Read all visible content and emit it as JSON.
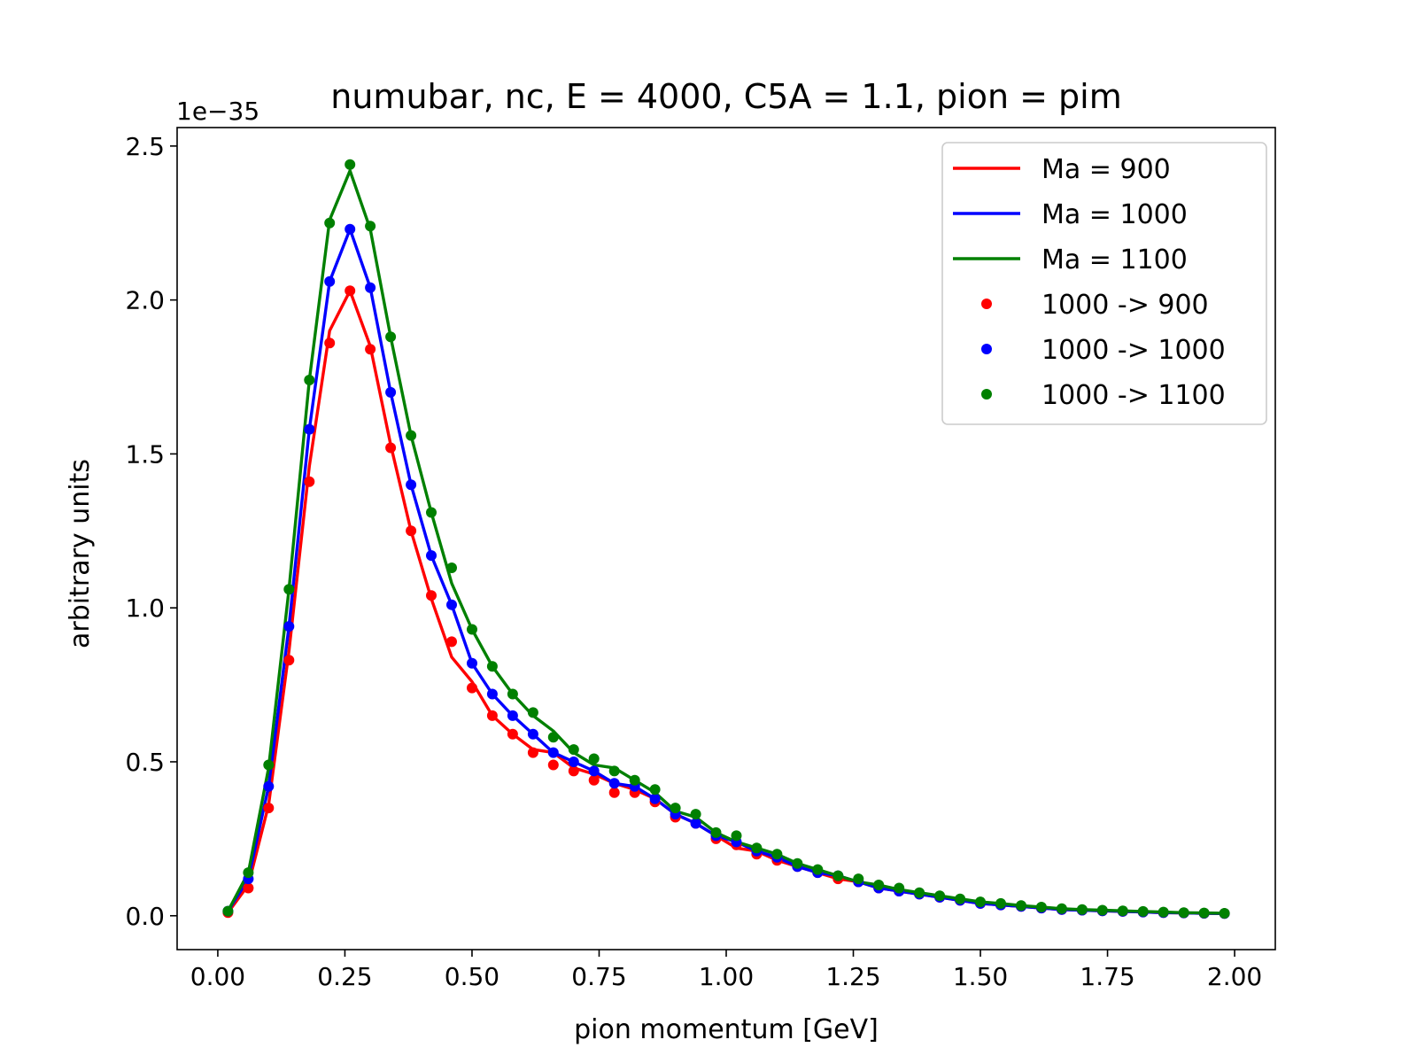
{
  "chart_data": {
    "type": "line",
    "title": "numubar, nc, E = 4000, C5A = 1.1, pion = pim",
    "xlabel": "pion momentum [GeV]",
    "ylabel": "arbitrary units",
    "y_offset_label": "1e−35",
    "xlim": [
      -0.08,
      2.08
    ],
    "ylim": [
      -0.11,
      2.56
    ],
    "xticks": [
      0.0,
      0.25,
      0.5,
      0.75,
      1.0,
      1.25,
      1.5,
      1.75,
      2.0
    ],
    "xtick_labels": [
      "0.00",
      "0.25",
      "0.50",
      "0.75",
      "1.00",
      "1.25",
      "1.50",
      "1.75",
      "2.00"
    ],
    "yticks": [
      0.0,
      0.5,
      1.0,
      1.5,
      2.0,
      2.5
    ],
    "ytick_labels": [
      "0.0",
      "0.5",
      "1.0",
      "1.5",
      "2.0",
      "2.5"
    ],
    "legend_position": "top-right",
    "x": [
      0.02,
      0.06,
      0.1,
      0.14,
      0.18,
      0.22,
      0.26,
      0.3,
      0.34,
      0.38,
      0.42,
      0.46,
      0.5,
      0.54,
      0.58,
      0.62,
      0.66,
      0.7,
      0.74,
      0.78,
      0.82,
      0.86,
      0.9,
      0.94,
      0.98,
      1.02,
      1.06,
      1.1,
      1.14,
      1.18,
      1.22,
      1.26,
      1.3,
      1.34,
      1.38,
      1.42,
      1.46,
      1.5,
      1.54,
      1.58,
      1.62,
      1.66,
      1.7,
      1.74,
      1.78,
      1.82,
      1.86,
      1.9,
      1.94,
      1.98
    ],
    "series": [
      {
        "name": "Ma = 900",
        "style": "line",
        "color": "#ff0000",
        "values": [
          0.01,
          0.1,
          0.36,
          0.86,
          1.46,
          1.9,
          2.03,
          1.85,
          1.53,
          1.25,
          1.03,
          0.84,
          0.76,
          0.65,
          0.59,
          0.54,
          0.53,
          0.48,
          0.46,
          0.43,
          0.41,
          0.38,
          0.33,
          0.3,
          0.26,
          0.22,
          0.21,
          0.18,
          0.16,
          0.14,
          0.12,
          0.11,
          0.09,
          0.08,
          0.07,
          0.06,
          0.05,
          0.04,
          0.035,
          0.03,
          0.025,
          0.02,
          0.018,
          0.016,
          0.014,
          0.012,
          0.01,
          0.009,
          0.008,
          0.007
        ]
      },
      {
        "name": "Ma = 1000",
        "style": "line",
        "color": "#0000ff",
        "values": [
          0.015,
          0.12,
          0.42,
          0.94,
          1.58,
          2.06,
          2.23,
          2.04,
          1.7,
          1.4,
          1.17,
          1.01,
          0.82,
          0.72,
          0.65,
          0.59,
          0.53,
          0.5,
          0.47,
          0.43,
          0.42,
          0.38,
          0.33,
          0.3,
          0.26,
          0.24,
          0.21,
          0.19,
          0.16,
          0.14,
          0.13,
          0.11,
          0.09,
          0.08,
          0.07,
          0.06,
          0.05,
          0.04,
          0.035,
          0.03,
          0.025,
          0.02,
          0.018,
          0.016,
          0.014,
          0.012,
          0.01,
          0.009,
          0.008,
          0.007
        ]
      },
      {
        "name": "Ma = 1100",
        "style": "line",
        "color": "#008000",
        "values": [
          0.015,
          0.14,
          0.48,
          1.06,
          1.74,
          2.26,
          2.42,
          2.23,
          1.88,
          1.56,
          1.31,
          1.08,
          0.93,
          0.81,
          0.72,
          0.65,
          0.6,
          0.53,
          0.49,
          0.48,
          0.44,
          0.4,
          0.34,
          0.32,
          0.27,
          0.24,
          0.22,
          0.2,
          0.17,
          0.15,
          0.13,
          0.11,
          0.1,
          0.085,
          0.075,
          0.065,
          0.055,
          0.045,
          0.04,
          0.033,
          0.028,
          0.023,
          0.02,
          0.018,
          0.016,
          0.014,
          0.012,
          0.01,
          0.009,
          0.008
        ]
      },
      {
        "name": "1000 -> 900",
        "style": "markers",
        "color": "#ff0000",
        "values": [
          0.01,
          0.09,
          0.35,
          0.83,
          1.41,
          1.86,
          2.03,
          1.84,
          1.52,
          1.25,
          1.04,
          0.89,
          0.74,
          0.65,
          0.59,
          0.53,
          0.49,
          0.47,
          0.44,
          0.4,
          0.4,
          0.37,
          0.32,
          0.3,
          0.25,
          0.23,
          0.2,
          0.18,
          0.16,
          0.14,
          0.12,
          0.11,
          0.09,
          0.08,
          0.07,
          0.06,
          0.05,
          0.04,
          0.035,
          0.03,
          0.025,
          0.02,
          0.018,
          0.016,
          0.014,
          0.012,
          0.01,
          0.009,
          0.008,
          0.007
        ]
      },
      {
        "name": "1000 -> 1000",
        "style": "markers",
        "color": "#0000ff",
        "values": [
          0.015,
          0.12,
          0.42,
          0.94,
          1.58,
          2.06,
          2.23,
          2.04,
          1.7,
          1.4,
          1.17,
          1.01,
          0.82,
          0.72,
          0.65,
          0.59,
          0.53,
          0.5,
          0.47,
          0.43,
          0.42,
          0.38,
          0.33,
          0.3,
          0.26,
          0.24,
          0.21,
          0.19,
          0.16,
          0.14,
          0.13,
          0.11,
          0.09,
          0.08,
          0.07,
          0.06,
          0.05,
          0.04,
          0.035,
          0.03,
          0.025,
          0.02,
          0.018,
          0.016,
          0.014,
          0.012,
          0.01,
          0.009,
          0.008,
          0.007
        ]
      },
      {
        "name": "1000 -> 1100",
        "style": "markers",
        "color": "#008000",
        "values": [
          0.015,
          0.14,
          0.49,
          1.06,
          1.74,
          2.25,
          2.44,
          2.24,
          1.88,
          1.56,
          1.31,
          1.13,
          0.93,
          0.81,
          0.72,
          0.66,
          0.58,
          0.54,
          0.51,
          0.47,
          0.44,
          0.41,
          0.35,
          0.33,
          0.27,
          0.26,
          0.22,
          0.2,
          0.17,
          0.15,
          0.13,
          0.12,
          0.1,
          0.09,
          0.075,
          0.065,
          0.055,
          0.045,
          0.04,
          0.033,
          0.028,
          0.023,
          0.02,
          0.018,
          0.016,
          0.014,
          0.012,
          0.01,
          0.009,
          0.008
        ]
      }
    ]
  }
}
